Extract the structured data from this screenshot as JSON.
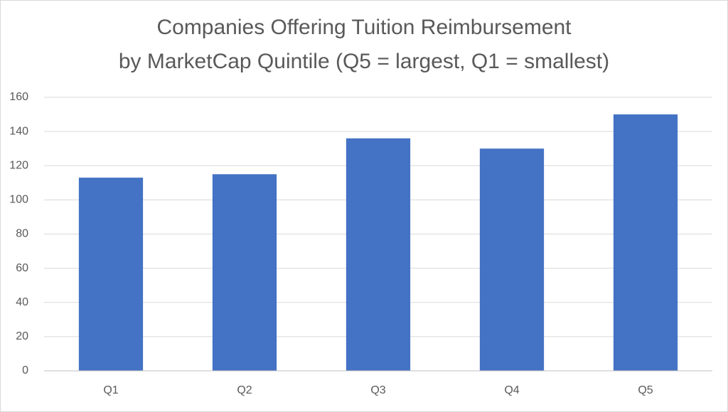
{
  "chart_data": {
    "type": "bar",
    "title": [
      "Companies Offering Tuition Reimbursement",
      "by MarketCap Quintile (Q5 = largest, Q1 = smallest)"
    ],
    "categories": [
      "Q1",
      "Q2",
      "Q3",
      "Q4",
      "Q5"
    ],
    "values": [
      113,
      115,
      136,
      130,
      150
    ],
    "color": "#4472c4",
    "ylim": [
      0,
      160
    ],
    "yticks": [
      0,
      20,
      40,
      60,
      80,
      100,
      120,
      140,
      160
    ],
    "grid": true
  }
}
